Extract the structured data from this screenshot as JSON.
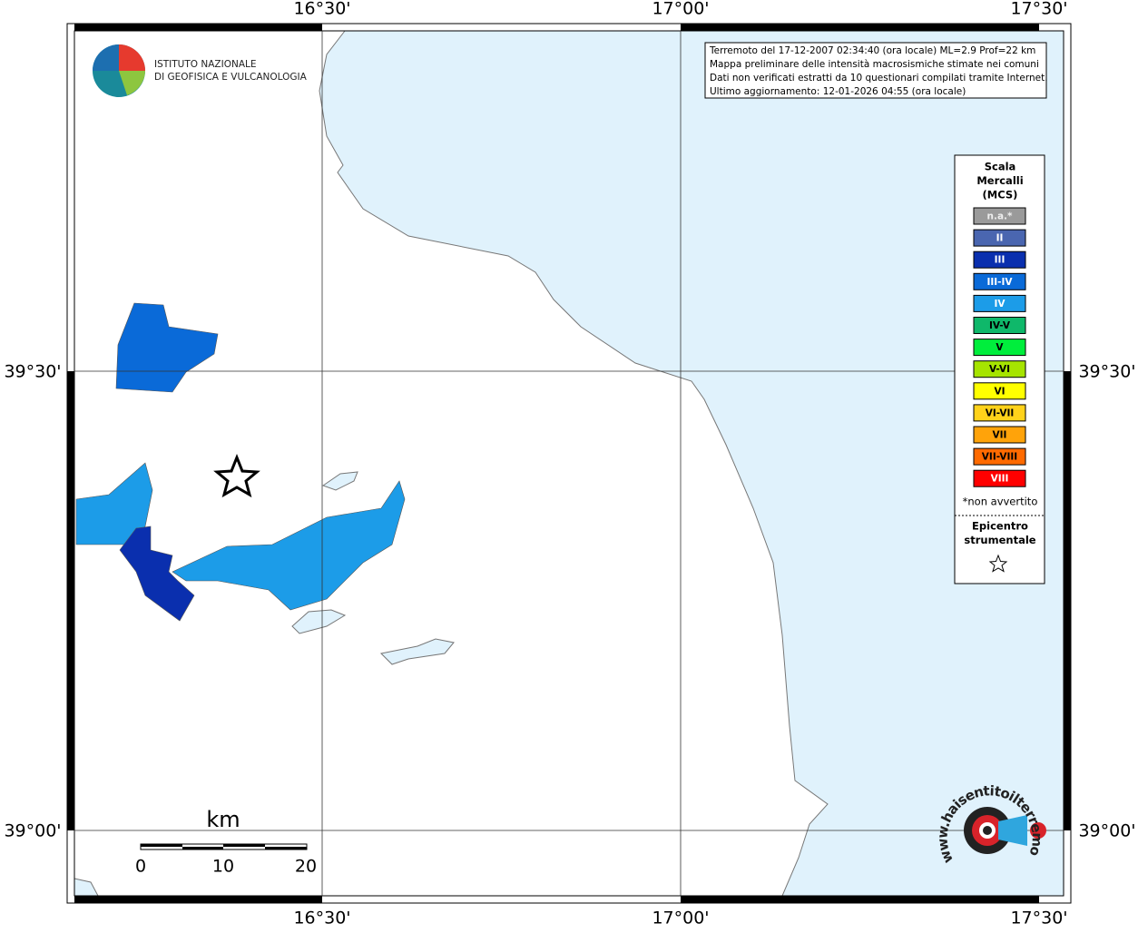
{
  "logo": {
    "line1": "ISTITUTO NAZIONALE",
    "line2": "DI GEOFISICA E VULCANOLOGIA"
  },
  "info": [
    "Terremoto del 17-12-2007 02:34:40 (ora locale) ML=2.9 Prof=22 km",
    "Mappa preliminare delle intensità macrosismiche stimate nei comuni",
    "Dati non verificati estratti da 10 questionari compilati tramite Internet.",
    "Ultimo aggiornamento: 12-01-2026 04:55 (ora locale)"
  ],
  "axes": {
    "lon": [
      "16°30'",
      "17°00'",
      "17°30'"
    ],
    "lat": [
      "39°30'",
      "39°00'"
    ]
  },
  "legend": {
    "title": [
      "Scala",
      "Mercalli",
      "(MCS)"
    ],
    "items": [
      {
        "label": "n.a.*",
        "color": "#9a9a9a"
      },
      {
        "label": "II",
        "color": "#4a66b0"
      },
      {
        "label": "III",
        "color": "#0a2fae"
      },
      {
        "label": "III-IV",
        "color": "#0a6ad8"
      },
      {
        "label": "IV",
        "color": "#1c9ce8"
      },
      {
        "label": "IV-V",
        "color": "#0fb86a"
      },
      {
        "label": "V",
        "color": "#00ee3c"
      },
      {
        "label": "V-VI",
        "color": "#a6e400"
      },
      {
        "label": "VI",
        "color": "#ffff00"
      },
      {
        "label": "VI-VII",
        "color": "#ffd21a"
      },
      {
        "label": "VII",
        "color": "#ffa30a"
      },
      {
        "label": "VII-VIII",
        "color": "#ff6a00"
      },
      {
        "label": "VIII",
        "color": "#ff0000"
      }
    ],
    "note": "*non avvertito",
    "epicentre": [
      "Epicentro",
      "strumentale"
    ]
  },
  "scale": {
    "unit": "km",
    "ticks": [
      "0",
      "10",
      "20"
    ]
  },
  "watermark": "www.haisentitoilterremoto.it"
}
